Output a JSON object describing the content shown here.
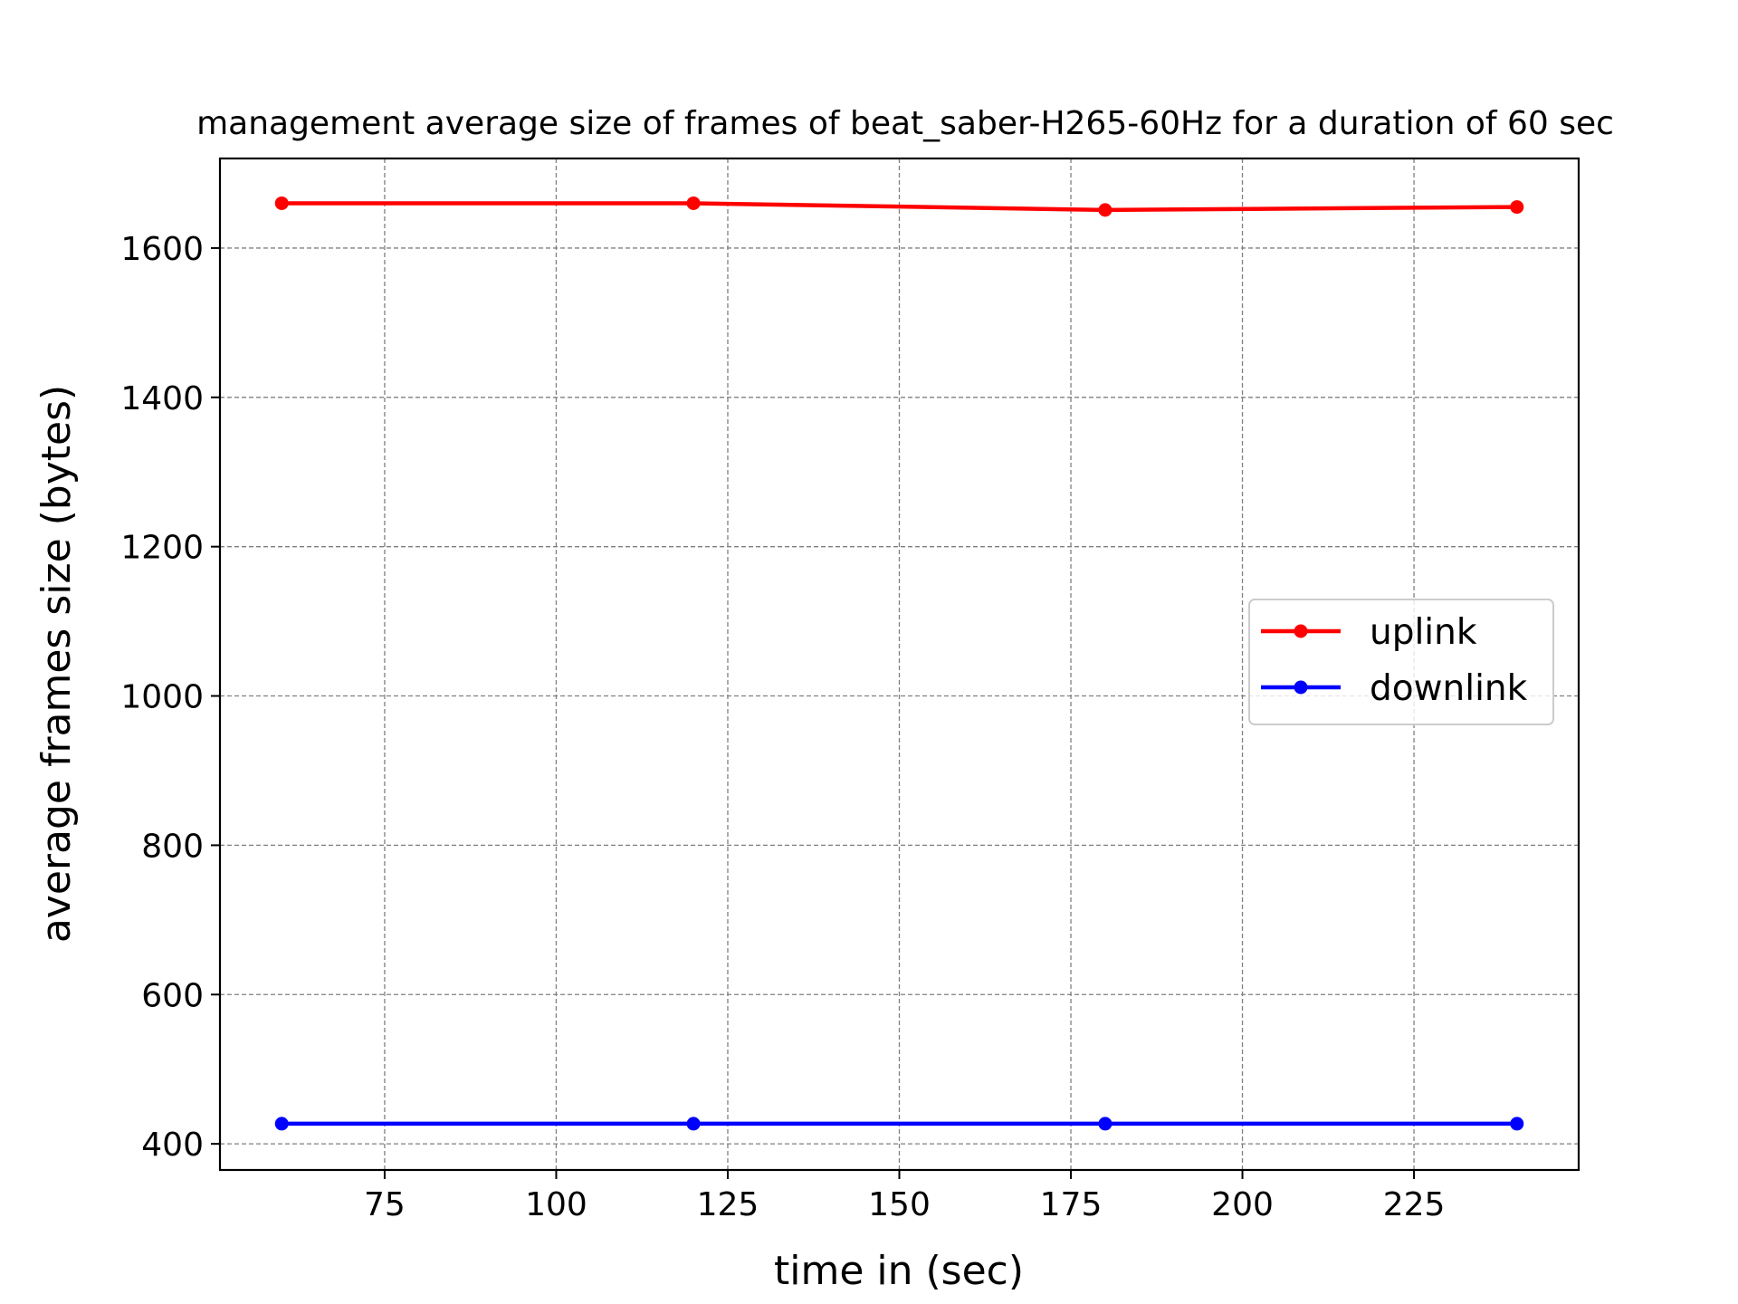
{
  "chart_data": {
    "type": "line",
    "title": "management average size of frames of beat_saber-H265-60Hz for a duration of 60 sec",
    "xlabel": "time in (sec)",
    "ylabel": "average frames size (bytes)",
    "x": [
      60,
      120,
      180,
      240
    ],
    "xlim": [
      51,
      249
    ],
    "ylim": [
      365,
      1720
    ],
    "xticks": [
      75,
      100,
      125,
      150,
      175,
      200,
      225
    ],
    "yticks": [
      400,
      600,
      800,
      1000,
      1200,
      1400,
      1600
    ],
    "grid": true,
    "legend_position": "center-right",
    "series": [
      {
        "name": "uplink",
        "color": "#ff0000",
        "values": [
          1660,
          1660,
          1651,
          1655
        ]
      },
      {
        "name": "downlink",
        "color": "#0000ff",
        "values": [
          427,
          427,
          427,
          427
        ]
      }
    ]
  }
}
